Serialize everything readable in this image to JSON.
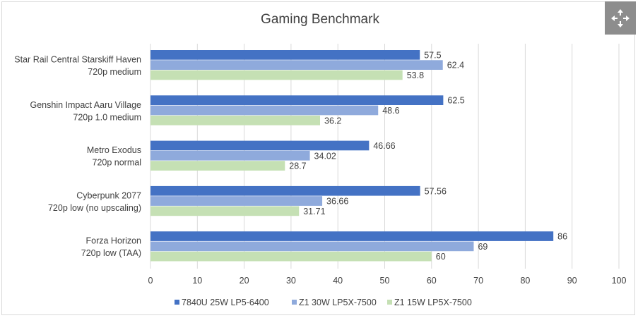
{
  "colors": {
    "series1": "#4472c4",
    "series2": "#8faadc",
    "series3": "#c5e0b4",
    "grid": "#d9d9d9",
    "text": "#404040"
  },
  "controls": {
    "expand_icon": "expand-arrows-icon"
  },
  "chart_data": {
    "type": "bar",
    "orientation": "horizontal",
    "title": "Gaming Benchmark",
    "xlabel": "",
    "ylabel": "",
    "xlim": [
      0,
      100
    ],
    "ticks": [
      0,
      10,
      20,
      30,
      40,
      50,
      60,
      70,
      80,
      90,
      100
    ],
    "grid": true,
    "legend_position": "bottom",
    "categories": [
      [
        "Star Rail Central Starskiff Haven",
        "720p medium"
      ],
      [
        "Genshin Impact Aaru Village",
        "720p 1.0 medium"
      ],
      [
        "Metro Exodus",
        "720p normal"
      ],
      [
        "Cyberpunk 2077",
        "720p low (no upscaling)"
      ],
      [
        "Forza Horizon",
        "720p low (TAA)"
      ]
    ],
    "series": [
      {
        "name": "7840U 25W LP5-6400",
        "values": [
          57.5,
          62.5,
          46.66,
          57.56,
          86
        ],
        "labels": [
          "57.5",
          "62.5",
          "46.66",
          "57.56",
          "86"
        ]
      },
      {
        "name": "Z1 30W LP5X-7500",
        "values": [
          62.4,
          48.6,
          34.02,
          36.66,
          69
        ],
        "labels": [
          "62.4",
          "48.6",
          "34.02",
          "36.66",
          "69"
        ]
      },
      {
        "name": "Z1 15W LP5X-7500",
        "values": [
          53.8,
          36.2,
          28.7,
          31.71,
          60
        ],
        "labels": [
          "53.8",
          "36.2",
          "28.7",
          "31.71",
          "60"
        ]
      }
    ]
  }
}
